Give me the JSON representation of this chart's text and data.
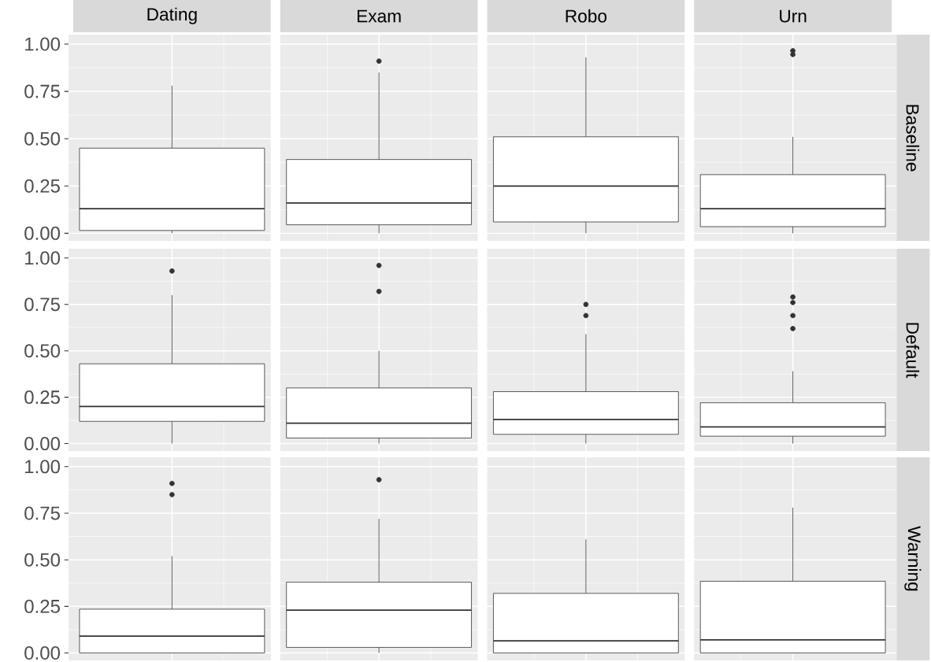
{
  "chart_data": [
    {
      "type": "box",
      "y2label": "Baseline",
      "categories": [
        "Dating",
        "Exam",
        "Robo",
        "Urn"
      ],
      "boxes": [
        {
          "low": 0.0,
          "q1": 0.015,
          "median": 0.13,
          "q3": 0.45,
          "high": 0.78
        },
        {
          "low": 0.0,
          "q1": 0.045,
          "median": 0.16,
          "q3": 0.39,
          "high": 0.85,
          "outliers": [
            0.91
          ]
        },
        {
          "low": 0.0,
          "q1": 0.06,
          "median": 0.25,
          "q3": 0.51,
          "high": 0.93
        },
        {
          "low": 0.0,
          "q1": 0.035,
          "median": 0.13,
          "q3": 0.31,
          "high": 0.51,
          "outliers": [
            0.945,
            0.965
          ]
        }
      ],
      "ylim": [
        -0.04,
        1.05
      ],
      "yticks": [
        {
          "value": 0,
          "label": "0.00"
        },
        {
          "value": 0.25,
          "label": "0.25"
        },
        {
          "value": 0.5,
          "label": "0.50"
        },
        {
          "value": 0.75,
          "label": "0.75"
        },
        {
          "value": 1,
          "label": "1.00"
        }
      ],
      "grid": true
    },
    {
      "type": "box",
      "y2label": "Default",
      "categories": [
        null,
        null,
        null,
        null
      ],
      "boxes": [
        {
          "low": 0.0,
          "q1": 0.12,
          "median": 0.2,
          "q3": 0.43,
          "high": 0.8,
          "outliers": [
            0.93
          ]
        },
        {
          "low": 0.0,
          "q1": 0.03,
          "median": 0.11,
          "q3": 0.3,
          "high": 0.5,
          "outliers": [
            0.82,
            0.96
          ]
        },
        {
          "low": 0.0,
          "q1": 0.05,
          "median": 0.13,
          "q3": 0.28,
          "high": 0.59,
          "outliers": [
            0.69,
            0.75
          ]
        },
        {
          "low": 0.0,
          "q1": 0.04,
          "median": 0.09,
          "q3": 0.22,
          "high": 0.39,
          "outliers": [
            0.62,
            0.69,
            0.76,
            0.79
          ]
        }
      ],
      "ylim": [
        -0.04,
        1.05
      ],
      "yticks": [
        {
          "value": 0,
          "label": "0.00"
        },
        {
          "value": 0.25,
          "label": "0.25"
        },
        {
          "value": 0.5,
          "label": "0.50"
        },
        {
          "value": 0.75,
          "label": "0.75"
        },
        {
          "value": 1,
          "label": "1.00"
        }
      ],
      "tick_labels": "y",
      "grid": true
    },
    {
      "type": "box",
      "y2label": "Warning",
      "categories": [
        null,
        null,
        null,
        null
      ],
      "boxes": [
        {
          "low": 0.0,
          "q1": 0.0,
          "median": 0.09,
          "q3": 0.235,
          "high": 0.52,
          "outliers": [
            0.85,
            0.91
          ]
        },
        {
          "low": 0.0,
          "q1": 0.03,
          "median": 0.23,
          "q3": 0.38,
          "high": 0.72,
          "outliers": [
            0.93
          ]
        },
        {
          "low": 0.0,
          "q1": 0.0,
          "median": 0.065,
          "q3": 0.32,
          "high": 0.61
        },
        {
          "low": 0.0,
          "q1": 0.0,
          "median": 0.07,
          "q3": 0.385,
          "high": 0.78
        }
      ],
      "ylim": [
        -0.04,
        1.05
      ],
      "yticks": [
        {
          "value": 0,
          "label": "0.00"
        },
        {
          "value": 0.25,
          "label": "0.25"
        },
        {
          "value": 0.5,
          "label": "0.50"
        },
        {
          "value": 0.75,
          "label": "0.75"
        },
        {
          "value": 1,
          "label": "1.00"
        }
      ],
      "tick_labels": "y",
      "grid": true
    }
  ]
}
